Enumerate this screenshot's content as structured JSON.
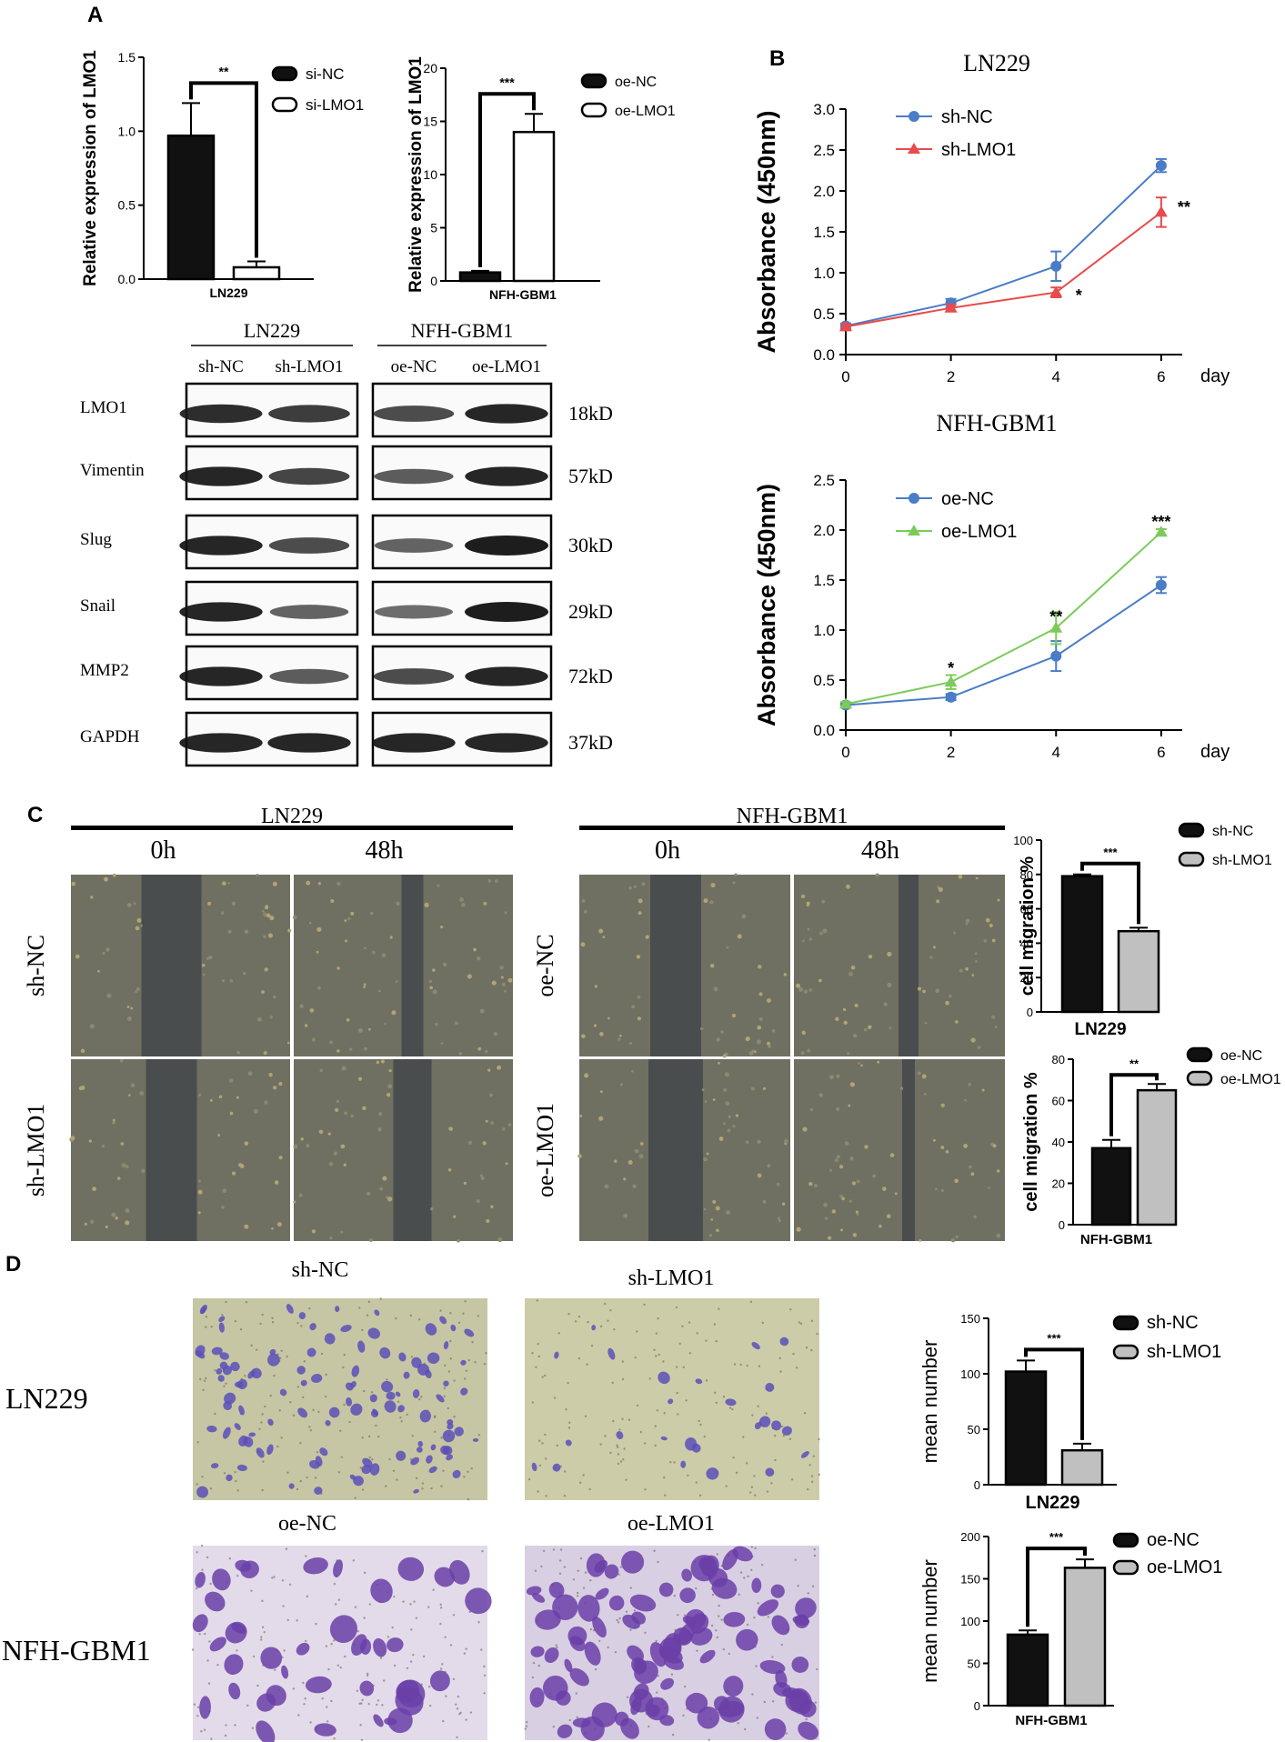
{
  "panels": {
    "a": "A",
    "b": "B",
    "c": "C",
    "d": "D"
  },
  "western": {
    "groups": [
      {
        "title": "LN229",
        "lanes": [
          "sh-NC",
          "sh-LMO1"
        ]
      },
      {
        "title": "NFH-GBM1",
        "lanes": [
          "oe-NC",
          "oe-LMO1"
        ]
      }
    ],
    "proteins": [
      "LMO1",
      "Vimentin",
      "Slug",
      "Snail",
      "MMP2",
      "GAPDH"
    ],
    "sizes": [
      "18kD",
      "57kD",
      "30kD",
      "29kD",
      "72kD",
      "37kD"
    ],
    "band_intensity": [
      [
        0.9,
        0.8,
        0.7,
        0.95
      ],
      [
        0.95,
        0.75,
        0.6,
        0.95
      ],
      [
        0.95,
        0.7,
        0.55,
        1.0
      ],
      [
        0.95,
        0.55,
        0.5,
        1.0
      ],
      [
        0.95,
        0.6,
        0.7,
        0.95
      ],
      [
        0.95,
        0.95,
        0.95,
        0.95
      ]
    ]
  },
  "scratch": {
    "ln229": {
      "title": "LN229",
      "times": [
        "0h",
        "48h"
      ],
      "rows": [
        "sh-NC",
        "sh-LMO1"
      ]
    },
    "gbm": {
      "title": "NFH-GBM1",
      "times": [
        "0h",
        "48h"
      ],
      "rows": [
        "oe-NC",
        "oe-LMO1"
      ]
    }
  },
  "transwell": {
    "top_labels": [
      "sh-NC",
      "sh-LMO1"
    ],
    "bottom_labels": [
      "oe-NC",
      "oe-LMO1"
    ],
    "row_labels": [
      "LN229",
      "NFH-GBM1"
    ],
    "colors": {
      "light": "#c9c6a6",
      "cell": "#5a4fb8",
      "stained_bg": "#e3dbe9",
      "stained_cell": "#6a3fa8"
    }
  },
  "colors": {
    "blue": "#4a7cc7",
    "red": "#e84b4b",
    "green": "#7ccb5a",
    "black": "#111111",
    "grey": "#c0c0c0"
  },
  "chart_data": [
    {
      "id": "a1",
      "type": "bar",
      "xlabel": "LN229",
      "ylabel": "Relative expression of LMO1",
      "ylim": [
        0,
        1.5
      ],
      "yticks": [
        0.0,
        0.5,
        1.0,
        1.5
      ],
      "tick_fmt": 1,
      "series": [
        {
          "name": "si-NC",
          "value": 0.97,
          "error": 0.22,
          "fill": "black"
        },
        {
          "name": "si-LMO1",
          "value": 0.08,
          "error": 0.04,
          "fill": "white"
        }
      ],
      "sig": "**",
      "legend": "right"
    },
    {
      "id": "a2",
      "type": "bar",
      "xlabel": "NFH-GBM1",
      "ylabel": "Relative expression of LMO1",
      "ylim": [
        0,
        20
      ],
      "yticks": [
        0,
        5,
        10,
        15,
        20
      ],
      "tick_fmt": 0,
      "series": [
        {
          "name": "oe-NC",
          "value": 0.8,
          "error": 0.15,
          "fill": "black"
        },
        {
          "name": "oe-LMO1",
          "value": 14.0,
          "error": 1.7,
          "fill": "white"
        }
      ],
      "sig": "***",
      "legend": "right"
    },
    {
      "id": "b1",
      "type": "line",
      "title": "LN229",
      "ylabel": "Absorbance (450nm)",
      "xunit": "day",
      "x": [
        0,
        2,
        4,
        6
      ],
      "xlim": [
        0,
        6.4
      ],
      "ylim": [
        0,
        3.0
      ],
      "yticks": [
        0.0,
        0.5,
        1.0,
        1.5,
        2.0,
        2.5,
        3.0
      ],
      "tick_fmt": 1,
      "series": [
        {
          "name": "sh-NC",
          "values": [
            0.35,
            0.63,
            1.08,
            2.31
          ],
          "errors": [
            0.03,
            0.05,
            0.18,
            0.08
          ],
          "color": "blue",
          "marker": "circle"
        },
        {
          "name": "sh-LMO1",
          "values": [
            0.34,
            0.57,
            0.76,
            1.74
          ],
          "errors": [
            0.03,
            0.04,
            0.06,
            0.18
          ],
          "color": "red",
          "marker": "triangle"
        }
      ],
      "annotations": [
        {
          "x": 4,
          "y": 0.72,
          "text": "*"
        },
        {
          "x": 6,
          "y": 1.8,
          "text": "**"
        }
      ]
    },
    {
      "id": "b2",
      "type": "line",
      "title": "NFH-GBM1",
      "ylabel": "Absorbance (450nm)",
      "xunit": "day",
      "x": [
        0,
        2,
        4,
        6
      ],
      "xlim": [
        0,
        6.4
      ],
      "ylim": [
        0,
        2.5
      ],
      "yticks": [
        0.0,
        0.5,
        1.0,
        1.5,
        2.0,
        2.5
      ],
      "tick_fmt": 1,
      "series": [
        {
          "name": "oe-NC",
          "values": [
            0.25,
            0.33,
            0.74,
            1.45
          ],
          "errors": [
            0.02,
            0.03,
            0.15,
            0.08
          ],
          "color": "blue",
          "marker": "circle"
        },
        {
          "name": "oe-LMO1",
          "values": [
            0.26,
            0.48,
            1.02,
            1.98
          ],
          "errors": [
            0.02,
            0.07,
            0.16,
            0.03
          ],
          "color": "green",
          "marker": "triangle"
        }
      ],
      "annotations": [
        {
          "x": 2,
          "y": 0.62,
          "text": "*"
        },
        {
          "x": 4,
          "y": 1.13,
          "text": "**"
        },
        {
          "x": 6,
          "y": 2.08,
          "text": "***"
        }
      ]
    },
    {
      "id": "c1",
      "type": "bar",
      "xlabel": "LN229",
      "ylabel": "cell migration %",
      "ylim": [
        0,
        100
      ],
      "yticks": [
        0,
        20,
        40,
        60,
        80,
        100
      ],
      "tick_fmt": 0,
      "series": [
        {
          "name": "sh-NC",
          "value": 79,
          "error": 1,
          "fill": "black"
        },
        {
          "name": "sh-LMO1",
          "value": 47,
          "error": 2,
          "fill": "grey"
        }
      ],
      "sig": "***",
      "legend": "right"
    },
    {
      "id": "c2",
      "type": "bar",
      "xlabel": "NFH-GBM1",
      "ylabel": "cell migration %",
      "ylim": [
        0,
        80
      ],
      "yticks": [
        0,
        20,
        40,
        60,
        80
      ],
      "tick_fmt": 0,
      "series": [
        {
          "name": "oe-NC",
          "value": 37,
          "error": 4,
          "fill": "black"
        },
        {
          "name": "oe-LMO1",
          "value": 65,
          "error": 3,
          "fill": "grey"
        }
      ],
      "sig": "**",
      "legend": "right"
    },
    {
      "id": "d1",
      "type": "bar",
      "xlabel": "LN229",
      "ylabel": "mean number",
      "ylim": [
        0,
        150
      ],
      "yticks": [
        0,
        50,
        100,
        150
      ],
      "tick_fmt": 0,
      "series": [
        {
          "name": "sh-NC",
          "value": 102,
          "error": 10,
          "fill": "black"
        },
        {
          "name": "sh-LMO1",
          "value": 31,
          "error": 6,
          "fill": "grey"
        }
      ],
      "sig": "***",
      "legend": "right"
    },
    {
      "id": "d2",
      "type": "bar",
      "xlabel": "NFH-GBM1",
      "ylabel": "mean number",
      "ylim": [
        0,
        200
      ],
      "yticks": [
        0,
        50,
        100,
        150,
        200
      ],
      "tick_fmt": 0,
      "series": [
        {
          "name": "oe-NC",
          "value": 84,
          "error": 5,
          "fill": "black"
        },
        {
          "name": "oe-LMO1",
          "value": 163,
          "error": 10,
          "fill": "grey"
        }
      ],
      "sig": "***",
      "legend": "right"
    }
  ]
}
